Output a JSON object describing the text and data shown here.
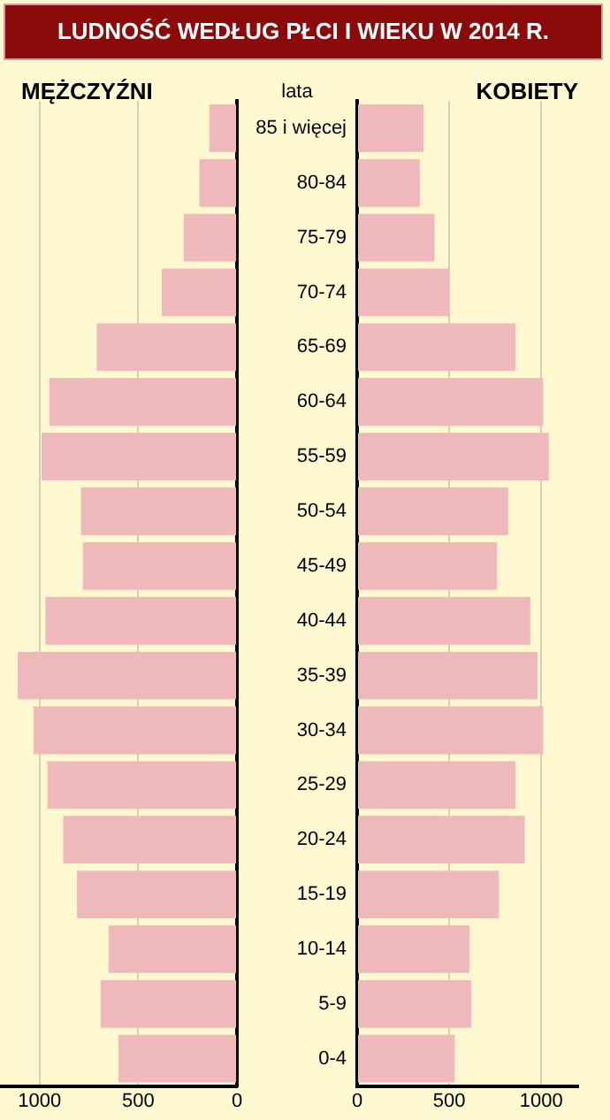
{
  "chart_data": [
    {
      "type": "bar",
      "orientation": "horizontal",
      "title": "LUDNOŚĆ WEDŁUG PŁCI I WIEKU  W 2014 R.",
      "subtitle": "MĘŻCZYŹNI",
      "categories": [
        null,
        null,
        null,
        null,
        null,
        null,
        null,
        null,
        null,
        null,
        null,
        null,
        null,
        null,
        null,
        null,
        null,
        null
      ],
      "values": [
        140,
        190,
        270,
        380,
        710,
        950,
        990,
        790,
        780,
        970,
        1110,
        1030,
        960,
        880,
        810,
        650,
        690,
        600
      ],
      "color": "#efb9bc",
      "xlim": [
        1200,
        0
      ],
      "xticks": [
        1000,
        500,
        0
      ],
      "grid": "x",
      "tick_labels": "x"
    },
    {
      "type": "bar",
      "orientation": "horizontal",
      "title": "KOBIETY",
      "ylabel": "lata",
      "categories": [
        "85 i więcej",
        "80-84",
        "75-79",
        "70-74",
        "65-69",
        "60-64",
        "55-59",
        "50-54",
        "45-49",
        "40-44",
        "35-39",
        "30-34",
        "25-29",
        "20-24",
        "15-19",
        "10-14",
        "5-9",
        "0-4"
      ],
      "values": [
        360,
        340,
        420,
        500,
        860,
        1010,
        1040,
        820,
        760,
        940,
        980,
        1010,
        860,
        910,
        770,
        610,
        620,
        530
      ],
      "color": "#efb9bc",
      "xlim": [
        0,
        1200
      ],
      "xticks": [
        0,
        500,
        1000
      ],
      "grid": "x"
    }
  ]
}
